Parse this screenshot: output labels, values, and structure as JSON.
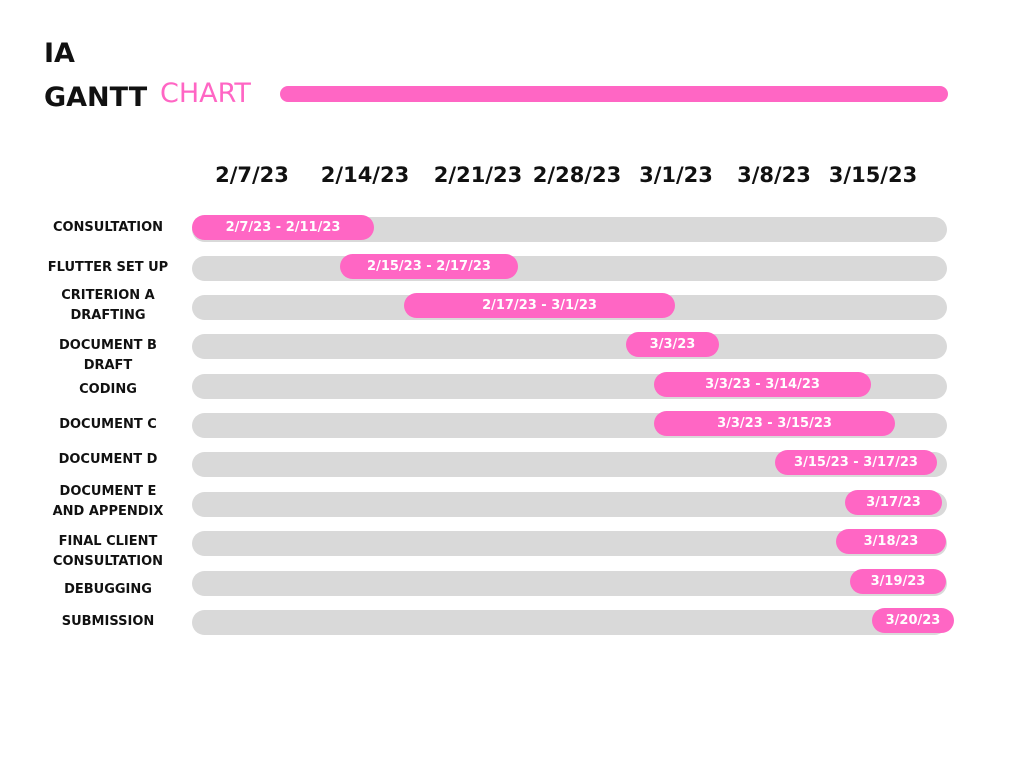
{
  "chart_data": {
    "type": "gantt",
    "title": [
      "IA",
      "GANTT",
      "CHART"
    ],
    "accent_color": "#ff66c4",
    "track_color": "#d9d9d9",
    "dates": [
      "2/7/23",
      "2/14/23",
      "2/21/23",
      "2/28/23",
      "3/1/23",
      "3/8/23",
      "3/15/23"
    ],
    "tasks": [
      {
        "name": "CONSULTATION",
        "label": "2/7/23 - 2/11/23"
      },
      {
        "name": "FLUTTER SET UP",
        "label": "2/15/23 - 2/17/23"
      },
      {
        "name": "CRITERION A\nDRAFTING",
        "label": "2/17/23 - 3/1/23"
      },
      {
        "name": "DOCUMENT B\nDRAFT",
        "label": "3/3/23"
      },
      {
        "name": "CODING",
        "label": "3/3/23 - 3/14/23"
      },
      {
        "name": "DOCUMENT C",
        "label": "3/3/23 - 3/15/23"
      },
      {
        "name": "DOCUMENT D",
        "label": "3/15/23 - 3/17/23"
      },
      {
        "name": "DOCUMENT E\nAND APPENDIX",
        "label": "3/17/23"
      },
      {
        "name": "FINAL CLIENT\nCONSULTATION",
        "label": "3/18/23"
      },
      {
        "name": "DEBUGGING",
        "label": "3/19/23"
      },
      {
        "name": "SUBMISSION",
        "label": "3/20/23"
      }
    ]
  }
}
